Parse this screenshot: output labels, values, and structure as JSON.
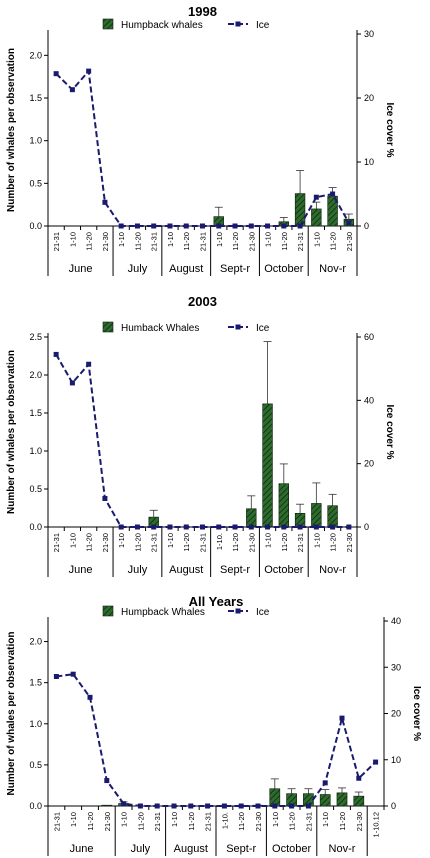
{
  "colors": {
    "bar_fill": "#2e6b2e",
    "bar_hatch": "#0a200a",
    "ice_line": "#1a1a6e",
    "axis": "#000000"
  },
  "chart_data": [
    {
      "type": "bar",
      "title": "1998",
      "ylabel": "Number of whales per observation",
      "y2label": "Ice cover %",
      "legend_whale": "Humpback whales",
      "legend_ice": "Ice",
      "ylim": [
        0,
        2.25
      ],
      "yticks": [
        "0.0",
        "0.5",
        "1.0",
        "1.5",
        "2.0"
      ],
      "y2lim": [
        0,
        30
      ],
      "y2ticks": [
        "0",
        "10",
        "20",
        "30"
      ],
      "categories": [
        "21-31",
        "1-10",
        "11-20",
        "21-30",
        "1-10",
        "11-20",
        "21-31",
        "1-10",
        "11-20",
        "21-31",
        "1-10",
        "11-20",
        "21-30",
        "1-10",
        "11-20",
        "21-31",
        "1-10",
        "11-20",
        "21-30"
      ],
      "months": [
        {
          "label": "June",
          "from": 0,
          "to": 3
        },
        {
          "label": "July",
          "from": 4,
          "to": 6
        },
        {
          "label": "August",
          "from": 7,
          "to": 9
        },
        {
          "label": "Sept-r",
          "from": 10,
          "to": 12
        },
        {
          "label": "October",
          "from": 13,
          "to": 15
        },
        {
          "label": "Nov-r",
          "from": 16,
          "to": 18
        }
      ],
      "whales": [
        null,
        null,
        null,
        null,
        null,
        null,
        null,
        null,
        null,
        null,
        0.11,
        null,
        null,
        null,
        0.05,
        0.38,
        0.2,
        0.35,
        0.08
      ],
      "whales_err": [
        0,
        0,
        0,
        0,
        0,
        0,
        0,
        0,
        0,
        0,
        0.11,
        0,
        0,
        0,
        0.05,
        0.27,
        0.08,
        0.1,
        0.06
      ],
      "ice": [
        23.8,
        21.3,
        24.2,
        3.7,
        0,
        0,
        0,
        0,
        0,
        0,
        0,
        0,
        0,
        0,
        0,
        0,
        4.5,
        5,
        0.5
      ]
    },
    {
      "type": "bar",
      "title": "2003",
      "ylabel": "Number of whales per observation",
      "y2label": "Ice cover %",
      "legend_whale": "Humback Whales",
      "legend_ice": "Ice",
      "ylim": [
        0,
        2.5
      ],
      "yticks": [
        "0.0",
        "0.5",
        "1.0",
        "1.5",
        "2.0",
        "2.5"
      ],
      "y2lim": [
        0,
        60
      ],
      "y2ticks": [
        "0",
        "20",
        "40",
        "60"
      ],
      "categories": [
        "21-31",
        "1-10",
        "11-20",
        "21-30",
        "1-10",
        "11-20",
        "21-31",
        "1-10",
        "11-20",
        "21-31",
        "1-10.",
        "11-20",
        "21-30",
        "1-10",
        "11-20",
        "21-31",
        "1-10",
        "11-20",
        "21-30"
      ],
      "months": [
        {
          "label": "June",
          "from": 0,
          "to": 3
        },
        {
          "label": "July",
          "from": 4,
          "to": 6
        },
        {
          "label": "August",
          "from": 7,
          "to": 9
        },
        {
          "label": "Sept-r",
          "from": 10,
          "to": 12
        },
        {
          "label": "October",
          "from": 13,
          "to": 15
        },
        {
          "label": "Nov-r",
          "from": 16,
          "to": 18
        }
      ],
      "whales": [
        null,
        null,
        null,
        null,
        null,
        null,
        0.13,
        null,
        null,
        null,
        null,
        null,
        0.24,
        1.62,
        0.57,
        0.18,
        0.31,
        0.28,
        null
      ],
      "whales_err": [
        0,
        0,
        0,
        0,
        0,
        0,
        0.09,
        0,
        0,
        0,
        0,
        0,
        0.17,
        0.82,
        0.26,
        0.12,
        0.27,
        0.15,
        0
      ],
      "ice": [
        54.5,
        45.5,
        51.4,
        9,
        0,
        0,
        0,
        0,
        0,
        0,
        0,
        0,
        0,
        0,
        0,
        0,
        0,
        0,
        0
      ]
    },
    {
      "type": "bar",
      "title": "All Years",
      "ylabel": "Number of whales per observation",
      "y2label": "Ice cover %",
      "legend_whale": "Humpback Whales",
      "legend_ice": "Ice",
      "ylim": [
        0,
        2.25
      ],
      "yticks": [
        "0.0",
        "0.5",
        "1.0",
        "1.5",
        "2.0"
      ],
      "y2lim": [
        0,
        40
      ],
      "y2ticks": [
        "0",
        "10",
        "20",
        "30",
        "40"
      ],
      "categories": [
        "21-31",
        "1-10",
        "11-20",
        "21-30",
        "1-10",
        "11-20",
        "21-31",
        "1-10",
        "11-20",
        "21-31",
        "1-10.",
        "11-20",
        "21-30",
        "1-10",
        "11-20",
        "21-31",
        "1-10",
        "11-20",
        "21-30",
        "1-10.12"
      ],
      "months": [
        {
          "label": "June",
          "from": 0,
          "to": 3
        },
        {
          "label": "July",
          "from": 4,
          "to": 6
        },
        {
          "label": "August",
          "from": 7,
          "to": 9
        },
        {
          "label": "Sept-r",
          "from": 10,
          "to": 12
        },
        {
          "label": "October",
          "from": 13,
          "to": 15
        },
        {
          "label": "Nov-r",
          "from": 16,
          "to": 18
        }
      ],
      "whales": [
        null,
        null,
        null,
        0.01,
        0.03,
        null,
        null,
        null,
        null,
        null,
        null,
        null,
        0.01,
        0.21,
        0.15,
        0.15,
        0.14,
        0.16,
        0.12,
        null
      ],
      "whales_err": [
        0,
        0,
        0,
        0,
        0.02,
        0,
        0,
        0,
        0,
        0,
        0,
        0,
        0,
        0.12,
        0.06,
        0.06,
        0.06,
        0.06,
        0.05,
        0
      ],
      "ice": [
        28,
        28.5,
        23.5,
        5.5,
        0.5,
        0,
        0,
        0,
        0,
        0,
        0,
        0,
        0,
        0,
        0,
        0,
        5,
        19,
        6,
        9.5
      ]
    }
  ]
}
